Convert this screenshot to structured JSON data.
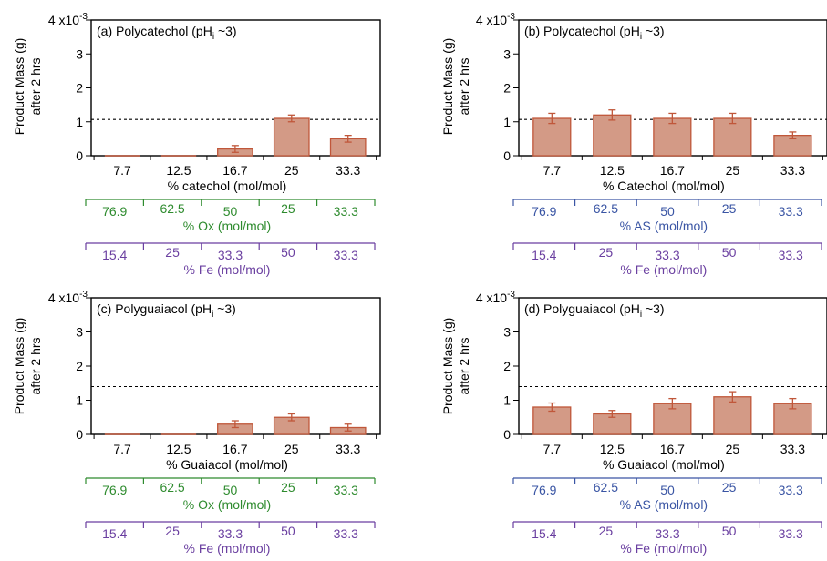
{
  "colors": {
    "bar_fill": "#d39a86",
    "bar_edge": "#c0573a",
    "ox_axis": "#2e8b2e",
    "as_axis": "#3a55a4",
    "fe_axis": "#6a3fa0"
  },
  "ylabel_line1": "Product Mass (g)",
  "ylabel_line2": "after 2 hrs",
  "y_exponent_prefix": "4 x10",
  "y_exponent_power": "-3",
  "chart_data": [
    {
      "panel": "a",
      "type": "bar",
      "title_main": "(a) Polycatechol (pH",
      "title_sub": "i",
      "title_end": " ~3)",
      "categories": [
        "7.7",
        "12.5",
        "16.7",
        "25",
        "33.3"
      ],
      "values": [
        0,
        0,
        0.2,
        1.1,
        0.5
      ],
      "errors": [
        0,
        0,
        0.1,
        0.1,
        0.1
      ],
      "ylim": [
        0,
        4
      ],
      "y_unit_scale": "x10^-3",
      "yticks": [
        "0",
        "1",
        "2",
        "3",
        "4"
      ],
      "reference_line": 1.07,
      "xlabel": "% catechol (mol/mol)",
      "secondary_axes": [
        {
          "kind": "ox",
          "values": [
            "76.9",
            "62.5",
            "50",
            "25",
            "33.3"
          ],
          "label": "% Ox (mol/mol)"
        },
        {
          "kind": "fe",
          "values": [
            "15.4",
            "25",
            "33.3",
            "50",
            "33.3"
          ],
          "label": "% Fe (mol/mol)"
        }
      ]
    },
    {
      "panel": "b",
      "type": "bar",
      "title_main": "(b) Polycatechol (pH",
      "title_sub": "i",
      "title_end": " ~3)",
      "categories": [
        "7.7",
        "12.5",
        "16.7",
        "25",
        "33.3"
      ],
      "values": [
        1.1,
        1.2,
        1.1,
        1.1,
        0.6
      ],
      "errors": [
        0.15,
        0.15,
        0.15,
        0.15,
        0.1
      ],
      "ylim": [
        0,
        4
      ],
      "y_unit_scale": "x10^-3",
      "yticks": [
        "0",
        "1",
        "2",
        "3",
        "4"
      ],
      "reference_line": 1.07,
      "xlabel": "% Catechol (mol/mol)",
      "secondary_axes": [
        {
          "kind": "as",
          "values": [
            "76.9",
            "62.5",
            "50",
            "25",
            "33.3"
          ],
          "label": "% AS (mol/mol)"
        },
        {
          "kind": "fe",
          "values": [
            "15.4",
            "25",
            "33.3",
            "50",
            "33.3"
          ],
          "label": "% Fe (mol/mol)"
        }
      ]
    },
    {
      "panel": "c",
      "type": "bar",
      "title_main": "(c) Polyguaiacol (pH",
      "title_sub": "i",
      "title_end": " ~3)",
      "categories": [
        "7.7",
        "12.5",
        "16.7",
        "25",
        "33.3"
      ],
      "values": [
        0,
        0,
        0.3,
        0.5,
        0.2
      ],
      "errors": [
        0,
        0,
        0.1,
        0.1,
        0.1
      ],
      "ylim": [
        0,
        4
      ],
      "y_unit_scale": "x10^-3",
      "yticks": [
        "0",
        "1",
        "2",
        "3",
        "4"
      ],
      "reference_line": 1.4,
      "xlabel": "% Guaiacol (mol/mol)",
      "secondary_axes": [
        {
          "kind": "ox",
          "values": [
            "76.9",
            "62.5",
            "50",
            "25",
            "33.3"
          ],
          "label": "% Ox (mol/mol)"
        },
        {
          "kind": "fe",
          "values": [
            "15.4",
            "25",
            "33.3",
            "50",
            "33.3"
          ],
          "label": "% Fe (mol/mol)"
        }
      ]
    },
    {
      "panel": "d",
      "type": "bar",
      "title_main": "(d) Polyguaiacol (pH",
      "title_sub": "i",
      "title_end": " ~3)",
      "categories": [
        "7.7",
        "12.5",
        "16.7",
        "25",
        "33.3"
      ],
      "values": [
        0.8,
        0.6,
        0.9,
        1.1,
        0.9
      ],
      "errors": [
        0.12,
        0.1,
        0.15,
        0.15,
        0.15
      ],
      "ylim": [
        0,
        4
      ],
      "y_unit_scale": "x10^-3",
      "yticks": [
        "0",
        "1",
        "2",
        "3",
        "4"
      ],
      "reference_line": 1.4,
      "xlabel": "% Guaiacol (mol/mol)",
      "secondary_axes": [
        {
          "kind": "as",
          "values": [
            "76.9",
            "62.5",
            "50",
            "25",
            "33.3"
          ],
          "label": "% AS (mol/mol)"
        },
        {
          "kind": "fe",
          "values": [
            "15.4",
            "25",
            "33.3",
            "50",
            "33.3"
          ],
          "label": "% Fe (mol/mol)"
        }
      ]
    }
  ]
}
